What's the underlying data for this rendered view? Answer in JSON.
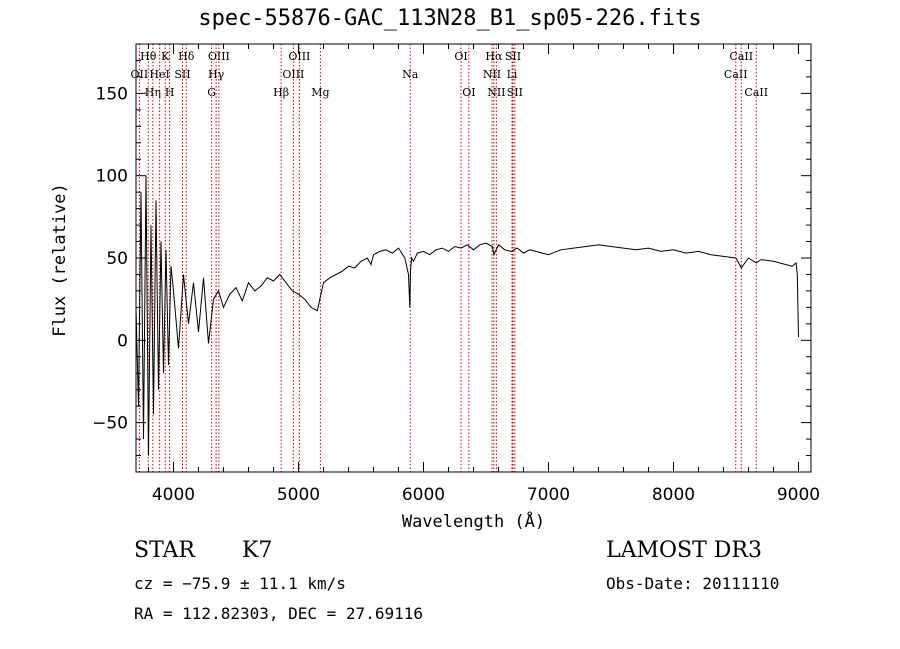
{
  "chart_data": {
    "type": "line",
    "title": "spec-55876-GAC_113N28_B1_sp05-226.fits",
    "xlabel": "Wavelength (Å)",
    "ylabel": "Flux (relative)",
    "xlim": [
      3700,
      9100
    ],
    "ylim": [
      -80,
      180
    ],
    "x_ticks": [
      4000,
      5000,
      6000,
      7000,
      8000,
      9000
    ],
    "x_tick_labels": [
      "4000",
      "5000",
      "6000",
      "7000",
      "8000",
      "9000"
    ],
    "y_ticks": [
      -50,
      0,
      50,
      100,
      150
    ],
    "y_tick_labels": [
      "−50",
      "0",
      "50",
      "100",
      "150"
    ],
    "series": [
      {
        "name": "spectrum",
        "x": [
          3700,
          3720,
          3740,
          3760,
          3780,
          3800,
          3820,
          3840,
          3860,
          3880,
          3900,
          3920,
          3940,
          3960,
          3980,
          4000,
          4040,
          4080,
          4120,
          4160,
          4200,
          4240,
          4280,
          4320,
          4360,
          4400,
          4450,
          4500,
          4550,
          4600,
          4650,
          4700,
          4750,
          4800,
          4850,
          4900,
          4950,
          5000,
          5050,
          5100,
          5150,
          5200,
          5250,
          5300,
          5350,
          5400,
          5450,
          5500,
          5550,
          5580,
          5600,
          5650,
          5700,
          5750,
          5800,
          5850,
          5880,
          5890,
          5896,
          5905,
          5920,
          5950,
          6000,
          6050,
          6100,
          6150,
          6200,
          6250,
          6300,
          6350,
          6400,
          6450,
          6500,
          6550,
          6563,
          6600,
          6650,
          6700,
          6750,
          6800,
          6850,
          6900,
          6950,
          7000,
          7100,
          7200,
          7300,
          7400,
          7500,
          7600,
          7700,
          7800,
          7900,
          8000,
          8100,
          8200,
          8300,
          8400,
          8500,
          8542,
          8600,
          8662,
          8700,
          8800,
          8900,
          8950,
          8980,
          8990,
          8995,
          9000
        ],
        "y": [
          20,
          -40,
          90,
          -60,
          100,
          -70,
          70,
          -45,
          85,
          -30,
          60,
          -20,
          55,
          -15,
          45,
          30,
          -5,
          40,
          10,
          35,
          5,
          38,
          -2,
          25,
          30,
          20,
          28,
          32,
          24,
          35,
          30,
          33,
          38,
          36,
          40,
          35,
          30,
          28,
          25,
          20,
          18,
          35,
          38,
          40,
          42,
          45,
          44,
          48,
          50,
          46,
          52,
          54,
          55,
          53,
          56,
          50,
          40,
          20,
          42,
          50,
          48,
          53,
          54,
          52,
          55,
          56,
          54,
          57,
          56,
          58,
          55,
          58,
          59,
          57,
          52,
          58,
          55,
          54,
          56,
          53,
          55,
          54,
          53,
          52,
          55,
          56,
          57,
          58,
          57,
          56,
          55,
          56,
          54,
          55,
          53,
          54,
          52,
          51,
          50,
          44,
          50,
          47,
          49,
          48,
          46,
          45,
          47,
          40,
          20,
          2
        ]
      }
    ],
    "lines": [
      {
        "name": "OII",
        "wavelength": 3727,
        "label_row": 1
      },
      {
        "name": "Hθ",
        "wavelength": 3798,
        "label_row": 0
      },
      {
        "name": "Hη",
        "wavelength": 3835,
        "label_row": 2
      },
      {
        "name": "K",
        "wavelength": 3934,
        "label_row": 0
      },
      {
        "name": "H",
        "wavelength": 3969,
        "label_row": 2
      },
      {
        "name": "HeI",
        "wavelength": 3889,
        "label_row": 1
      },
      {
        "name": "SII",
        "wavelength": 4072,
        "label_row": 1
      },
      {
        "name": "Hδ",
        "wavelength": 4102,
        "label_row": 0
      },
      {
        "name": "G",
        "wavelength": 4305,
        "label_row": 2
      },
      {
        "name": "OIII",
        "wavelength": 4363,
        "label_row": 0
      },
      {
        "name": "Hγ",
        "wavelength": 4341,
        "label_row": 1
      },
      {
        "name": "Hβ",
        "wavelength": 4861,
        "label_row": 2
      },
      {
        "name": "OIII",
        "wavelength": 4959,
        "label_row": 1
      },
      {
        "name": "OIII",
        "wavelength": 5007,
        "label_row": 0
      },
      {
        "name": "Mg",
        "wavelength": 5175,
        "label_row": 2
      },
      {
        "name": "Na",
        "wavelength": 5894,
        "label_row": 1
      },
      {
        "name": "OI",
        "wavelength": 6300,
        "label_row": 0
      },
      {
        "name": "OI",
        "wavelength": 6363,
        "label_row": 2
      },
      {
        "name": "NII",
        "wavelength": 6548,
        "label_row": 1
      },
      {
        "name": "Hα",
        "wavelength": 6563,
        "label_row": 0
      },
      {
        "name": "NII",
        "wavelength": 6583,
        "label_row": 2
      },
      {
        "name": "SII",
        "wavelength": 6716,
        "label_row": 0
      },
      {
        "name": "Li",
        "wavelength": 6708,
        "label_row": 1
      },
      {
        "name": "SII",
        "wavelength": 6731,
        "label_row": 2
      },
      {
        "name": "CaII",
        "wavelength": 8498,
        "label_row": 1
      },
      {
        "name": "CaII",
        "wavelength": 8542,
        "label_row": 0
      },
      {
        "name": "CaII",
        "wavelength": 8662,
        "label_row": 2
      }
    ]
  },
  "info": {
    "class": "STAR",
    "subclass": "K7",
    "cz": "cz = −75.9 ± 11.1 km/s",
    "radec": "RA = 112.82303, DEC =  27.69116",
    "survey": "LAMOST DR3",
    "obs_date": "Obs-Date: 20111110"
  },
  "colors": {
    "line_marker": "#c00000",
    "spectrum": "#000000",
    "axes": "#000000"
  }
}
